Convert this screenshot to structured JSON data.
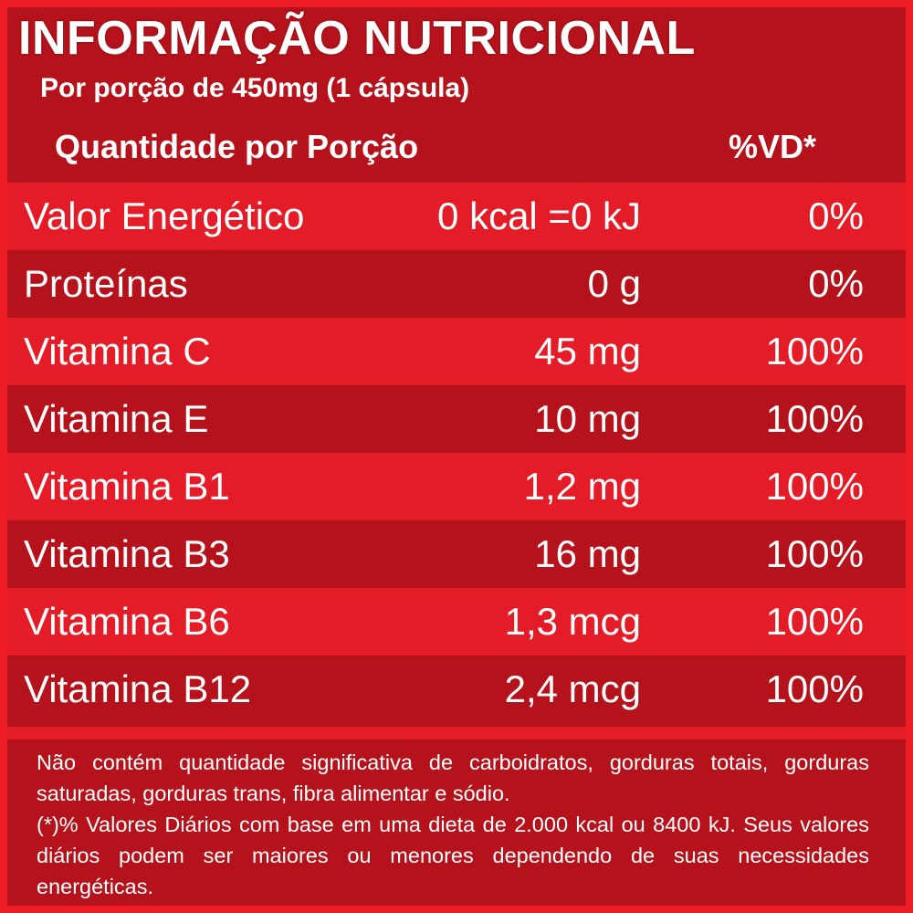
{
  "header": {
    "title": "INFORMAÇÃO NUTRICIONAL",
    "subtitle": "Por porção de 450mg (1 cápsula)",
    "col_quantity": "Quantidade por Porção",
    "col_vd": "%VD*"
  },
  "rows": [
    {
      "name": "Valor Energético",
      "qty": "0 kcal =0 kJ",
      "vd": "0%"
    },
    {
      "name": "Proteínas",
      "qty": "0 g",
      "vd": "0%"
    },
    {
      "name": "Vitamina C",
      "qty": "45 mg",
      "vd": "100%"
    },
    {
      "name": "Vitamina E",
      "qty": "10 mg",
      "vd": "100%"
    },
    {
      "name": "Vitamina B1",
      "qty": "1,2 mg",
      "vd": "100%"
    },
    {
      "name": "Vitamina B3",
      "qty": "16 mg",
      "vd": "100%"
    },
    {
      "name": "Vitamina B6",
      "qty": "1,3 mcg",
      "vd": "100%"
    },
    {
      "name": "Vitamina B12",
      "qty": "2,4 mcg",
      "vd": "100%"
    }
  ],
  "footnote": {
    "line1": "Não contém quantidade significativa de carboidratos, gorduras totais, gorduras saturadas, gorduras trans, fibra alimentar e sódio.",
    "line2": "(*)% Valores Diários com base em uma dieta de 2.000 kcal ou 8400 kJ. Seus valores diários podem ser maiores ou menores dependendo de suas necessidades energéticas."
  },
  "colors": {
    "bright_red": "#e41c27",
    "dark_red": "#b5121b",
    "text": "#ffffff"
  }
}
